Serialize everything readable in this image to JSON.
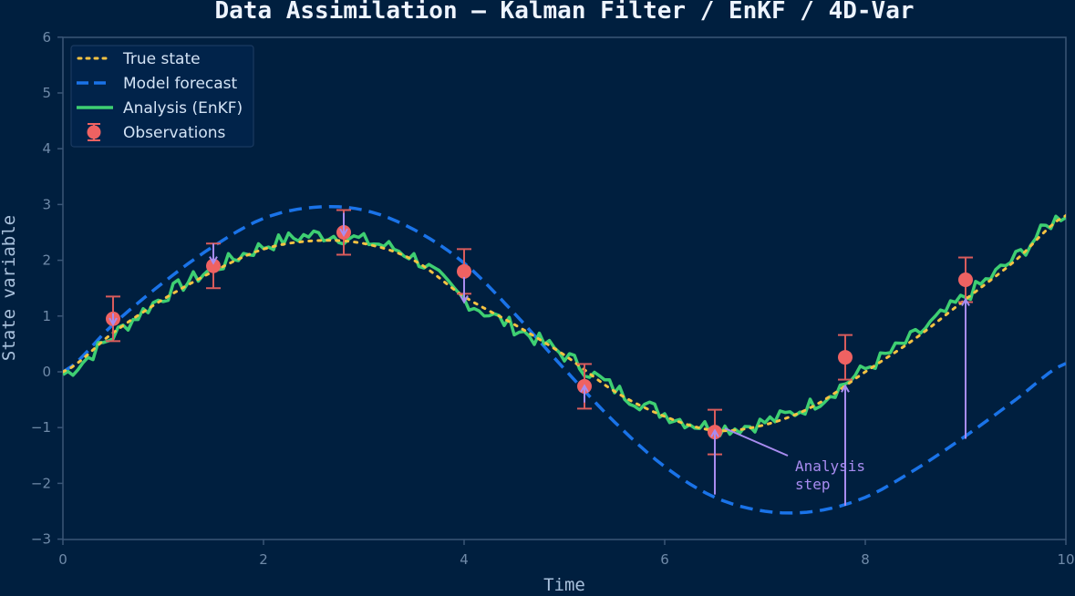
{
  "chart_data": {
    "type": "line",
    "title": "Data Assimilation — Kalman Filter / EnKF / 4D-Var",
    "xlabel": "Time",
    "ylabel": "State variable",
    "xlim": [
      0,
      10
    ],
    "ylim": [
      -3,
      6
    ],
    "xticks": [
      0,
      2,
      4,
      6,
      8,
      10
    ],
    "yticks": [
      -3,
      -2,
      -1,
      0,
      1,
      2,
      3,
      4,
      5,
      6
    ],
    "grid": false,
    "legend_position": "upper left",
    "legend": [
      {
        "label": "True state",
        "style": "dotted",
        "color": "#f5c242"
      },
      {
        "label": "Model forecast",
        "style": "dashed",
        "color": "#1a73e8"
      },
      {
        "label": "Analysis (EnKF)",
        "style": "solid",
        "color": "#3ecf72"
      },
      {
        "label": "Observations",
        "style": "marker-errorbar",
        "color": "#ef6262"
      }
    ],
    "x": [
      0,
      0.5,
      1,
      1.5,
      2,
      2.5,
      3,
      3.5,
      4,
      4.5,
      5,
      5.5,
      6,
      6.5,
      7,
      7.5,
      8,
      8.5,
      9,
      9.5,
      10
    ],
    "series": [
      {
        "name": "True state",
        "values": [
          0,
          0.7,
          1.3,
          1.8,
          2.2,
          2.35,
          2.3,
          2.0,
          1.35,
          0.85,
          0.3,
          -0.35,
          -0.8,
          -1.05,
          -0.95,
          -0.6,
          0.0,
          0.6,
          1.3,
          2.0,
          2.8
        ]
      },
      {
        "name": "Model forecast",
        "values": [
          0,
          0.85,
          1.6,
          2.25,
          2.75,
          2.95,
          2.9,
          2.55,
          1.95,
          1.05,
          0.05,
          -0.9,
          -1.7,
          -2.25,
          -2.5,
          -2.5,
          -2.25,
          -1.75,
          -1.15,
          -0.5,
          0.15
        ]
      },
      {
        "name": "Analysis (EnKF)",
        "values": [
          -0.05,
          0.65,
          1.35,
          1.85,
          2.25,
          2.45,
          2.35,
          2.05,
          1.3,
          0.8,
          0.3,
          -0.3,
          -0.75,
          -1.0,
          -0.9,
          -0.55,
          0.05,
          0.65,
          1.35,
          2.05,
          2.85
        ]
      }
    ],
    "observations": {
      "x": [
        0.5,
        1.5,
        2.8,
        4.0,
        5.2,
        6.5,
        7.8,
        9.0
      ],
      "y": [
        0.95,
        1.9,
        2.5,
        1.8,
        -0.26,
        -1.08,
        0.26,
        1.65
      ],
      "error": 0.4
    },
    "analysis_increments": [
      {
        "x": 0.5,
        "from": 1.05,
        "to": 0.85
      },
      {
        "x": 1.5,
        "from": 2.3,
        "to": 1.95
      },
      {
        "x": 2.8,
        "from": 2.85,
        "to": 2.45
      },
      {
        "x": 4.0,
        "from": 1.7,
        "to": 1.25
      },
      {
        "x": 5.2,
        "from": -0.55,
        "to": -0.25
      },
      {
        "x": 6.5,
        "from": -2.2,
        "to": -1.05
      },
      {
        "x": 7.8,
        "from": -2.4,
        "to": -0.25
      },
      {
        "x": 9.0,
        "from": -1.2,
        "to": 1.3
      }
    ],
    "annotations": [
      {
        "text": "Analysis\nstep",
        "xy": [
          6.5,
          -1.05
        ],
        "xytext": [
          7.3,
          -1.7
        ],
        "color": "#a88cf0"
      }
    ]
  },
  "labels": {
    "title": "Data Assimilation — Kalman Filter / EnKF / 4D-Var",
    "xlabel": "Time",
    "ylabel": "State variable",
    "annotation_line1": "Analysis",
    "annotation_line2": "step",
    "legend": [
      "True state",
      "Model forecast",
      "Analysis (EnKF)",
      "Observations"
    ]
  },
  "colors": {
    "background": "#001f3f",
    "spine": "#3a5677",
    "true": "#f5c242",
    "forecast": "#1a73e8",
    "analysis": "#3ecf72",
    "obs": "#ef6262",
    "arrow": "#a88cf0"
  }
}
